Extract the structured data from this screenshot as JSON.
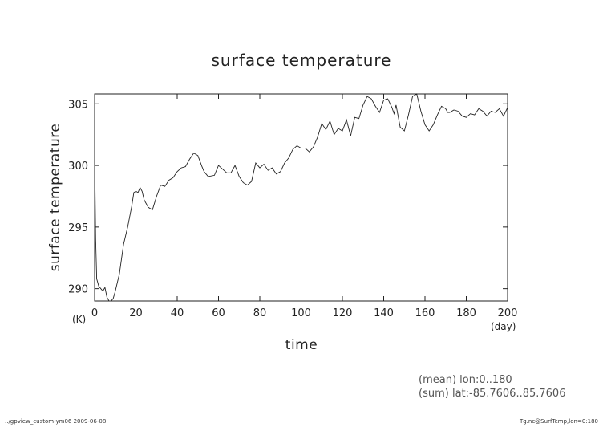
{
  "chart_data": {
    "type": "line",
    "title": "surface temperature",
    "xlabel": "time",
    "ylabel": "surface temperature",
    "x_unit": "(day)",
    "y_unit": "(K)",
    "xlim": [
      0,
      200
    ],
    "ylim": [
      289,
      305.8
    ],
    "x_ticks": [
      0,
      20,
      40,
      60,
      80,
      100,
      120,
      140,
      160,
      180,
      200
    ],
    "y_ticks": [
      290,
      295,
      300,
      305
    ],
    "grid": false,
    "series": [
      {
        "x": [
          0,
          0.5,
          1,
          2,
          4,
          5,
          6,
          7,
          8,
          9,
          10,
          12,
          14,
          16,
          18,
          19,
          20,
          21,
          22,
          23,
          24,
          26,
          28,
          30,
          32,
          34,
          36,
          38,
          40,
          42,
          44,
          46,
          48,
          50,
          52,
          53,
          55,
          58,
          60,
          64,
          66,
          68,
          70,
          72,
          74,
          76,
          78,
          80,
          82,
          84,
          86,
          88,
          90,
          92,
          94,
          96,
          98,
          100,
          102,
          104,
          106,
          108,
          110,
          112,
          114,
          116,
          118,
          120,
          122,
          124,
          126,
          128,
          130,
          132,
          134,
          136,
          138,
          140,
          142,
          144,
          145,
          146,
          148,
          150,
          152,
          154,
          156,
          158,
          160,
          162,
          164,
          166,
          168,
          170,
          171,
          172,
          174,
          176,
          178,
          180,
          182,
          184,
          186,
          188,
          190,
          192,
          194,
          196,
          198,
          200
        ],
        "y": [
          301,
          294,
          290.8,
          290.2,
          289.8,
          290.1,
          289.3,
          289.0,
          288.9,
          289.2,
          289.8,
          291.2,
          293.6,
          295.0,
          296.7,
          297.8,
          297.9,
          297.8,
          298.2,
          297.9,
          297.2,
          296.6,
          296.4,
          297.5,
          298.4,
          298.3,
          298.8,
          299.0,
          299.5,
          299.8,
          299.9,
          300.5,
          301.0,
          300.8,
          299.9,
          299.5,
          299.1,
          299.2,
          300.0,
          299.4,
          299.4,
          300.0,
          299.1,
          298.6,
          298.4,
          298.7,
          300.2,
          299.8,
          300.1,
          299.6,
          299.8,
          299.3,
          299.5,
          300.2,
          300.6,
          301.3,
          301.6,
          301.4,
          301.4,
          301.1,
          301.5,
          302.3,
          303.4,
          302.9,
          303.6,
          302.5,
          303.0,
          302.8,
          303.7,
          302.4,
          303.9,
          303.8,
          304.9,
          305.6,
          305.4,
          304.8,
          304.3,
          305.3,
          305.4,
          304.7,
          304.2,
          304.9,
          303.1,
          302.8,
          304.1,
          305.6,
          305.9,
          304.4,
          303.3,
          302.8,
          303.3,
          304.1,
          304.8,
          304.6,
          304.3,
          304.3,
          304.5,
          304.4,
          304.0,
          303.9,
          304.2,
          304.1,
          304.6,
          304.4,
          304.0,
          304.4,
          304.3,
          304.6,
          304.0,
          304.7
        ]
      }
    ]
  },
  "annotations": {
    "mean_note": "(mean) lon:0..180",
    "sum_note": "(sum) lat:-85.7606..85.7606"
  },
  "footer": {
    "left": "../gpview_custom-ym06  2009-06-08",
    "right": "Tg.nc@SurfTemp,lon=0:180"
  }
}
